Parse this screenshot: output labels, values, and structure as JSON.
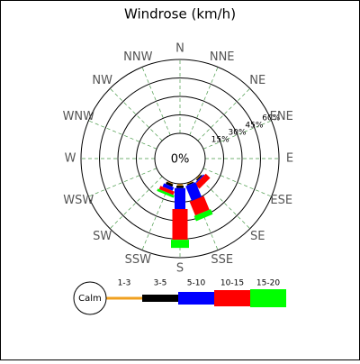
{
  "chart_data": {
    "type": "windrose",
    "title": "Windrose (km/h)",
    "categories": [
      "N",
      "NNE",
      "NE",
      "ENE",
      "E",
      "ESE",
      "SE",
      "SSE",
      "S",
      "SSW",
      "SW",
      "WSW",
      "W",
      "WNW",
      "NW",
      "NNW"
    ],
    "series": [
      {
        "name": "1-3",
        "color": "#f0a020",
        "values": [
          0,
          0,
          0,
          0,
          0,
          0,
          1,
          1,
          1.5,
          1,
          0,
          0,
          0,
          0,
          0,
          0
        ]
      },
      {
        "name": "3-5",
        "color": "#000000",
        "values": [
          0,
          0,
          0,
          0,
          0,
          0,
          1,
          1,
          2,
          2,
          0,
          0,
          0,
          0,
          0,
          0
        ]
      },
      {
        "name": "5-10",
        "color": "#0000ff",
        "values": [
          0,
          0,
          0,
          0,
          0,
          0,
          1,
          13,
          17,
          3,
          0,
          0,
          0,
          0,
          0,
          0
        ]
      },
      {
        "name": "10-15",
        "color": "#ff0000",
        "values": [
          0,
          0,
          0,
          0,
          0,
          0,
          5,
          12,
          25,
          3,
          0,
          0,
          0,
          0,
          0,
          0
        ]
      },
      {
        "name": "15-20",
        "color": "#00ff00",
        "values": [
          0,
          0,
          0,
          0,
          0,
          0,
          0,
          4.5,
          6.5,
          2,
          0,
          0,
          0,
          0,
          0,
          0
        ]
      }
    ],
    "calm_label": "Calm",
    "calm_value": 0,
    "calm_value_label": "0%",
    "rlim": [
      0,
      60
    ],
    "rticks": [
      {
        "value": 15,
        "label": "15%"
      },
      {
        "value": 30,
        "label": "30%"
      },
      {
        "value": 45,
        "label": "45%"
      },
      {
        "value": 60,
        "label": "60%"
      }
    ],
    "grid": true
  }
}
